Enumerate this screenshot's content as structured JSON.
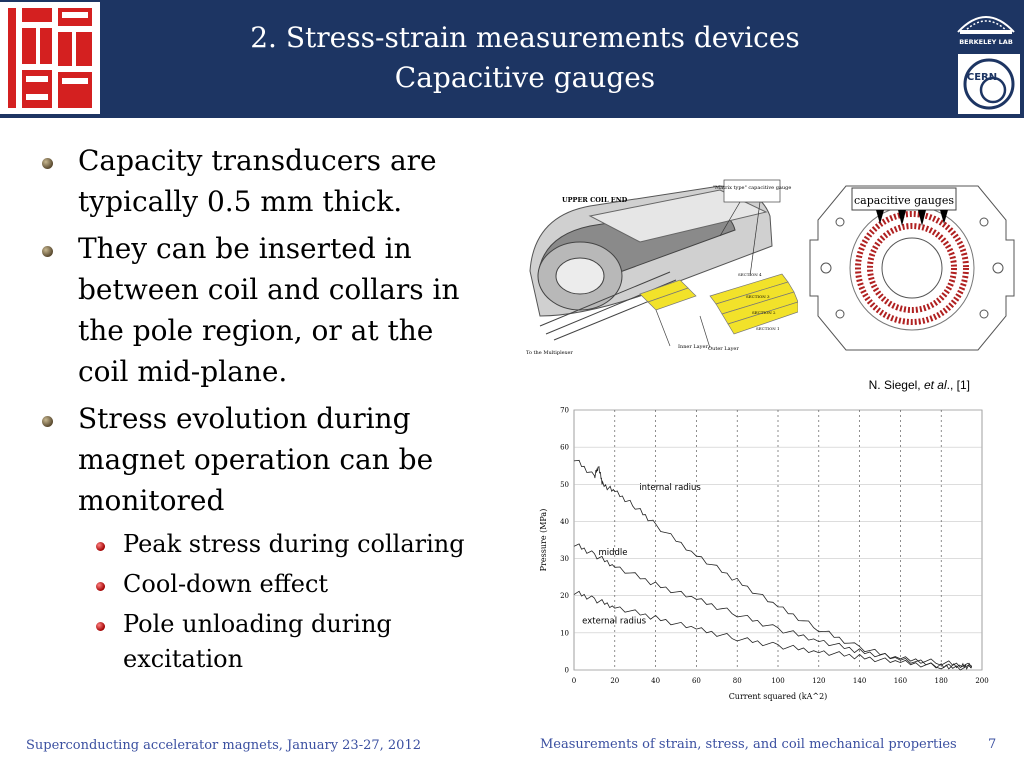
{
  "header": {
    "title_line1": "2. Stress-strain measurements devices",
    "title_line2": "Capacitive gauges",
    "logo_left_text": "USPAS",
    "logo_berkeley_text": "BERKELEY LAB",
    "logo_cern_text": "CERN"
  },
  "bullets": [
    {
      "text": "Capacity transducers are typically 0.5 mm thick."
    },
    {
      "text": "They can be inserted in between coil and collars in the pole region, or at the coil mid-plane."
    },
    {
      "text": "Stress evolution during magnet operation can be monitored"
    }
  ],
  "sub_bullets": [
    {
      "text": "Peak stress during collaring"
    },
    {
      "text": "Cool-down effect"
    },
    {
      "text": "Pole unloading during excitation"
    }
  ],
  "figure1": {
    "label_coil_end": "UPPER COIL END",
    "label_gauge": "\"Matrix type\" capacitive gauge",
    "label_multiplexer": "To the Multiplexer",
    "label_inner": "Inner Layer",
    "label_outer": "Outer Layer",
    "sections": [
      "SECTION 4",
      "SECTION 3",
      "SECTION 2",
      "SECTION 1"
    ]
  },
  "figure2": {
    "label": "capacitive gauges"
  },
  "credit": {
    "author": "N. Siegel, ",
    "etal": "et al",
    "ref": "., [1]"
  },
  "chart_data": {
    "type": "line",
    "xlabel": "Current squared (kA^2)",
    "ylabel": "Pressure (MPa)",
    "xlim": [
      0,
      200
    ],
    "ylim": [
      0,
      70
    ],
    "xticks": [
      0,
      20,
      40,
      60,
      80,
      100,
      120,
      140,
      160,
      180,
      200
    ],
    "yticks": [
      0,
      10,
      20,
      30,
      40,
      50,
      60,
      70
    ],
    "grid": "vertical dashed",
    "series": [
      {
        "name": "internal radius",
        "x": [
          0,
          10,
          12,
          14,
          20,
          30,
          40,
          60,
          80,
          100,
          120,
          140,
          160,
          180,
          190,
          195
        ],
        "y": [
          57,
          52,
          55,
          50,
          48,
          44,
          39,
          31,
          24,
          17,
          11,
          6,
          3,
          1,
          1,
          1
        ]
      },
      {
        "name": "middle",
        "x": [
          0,
          10,
          20,
          40,
          60,
          80,
          100,
          120,
          140,
          160,
          180,
          195
        ],
        "y": [
          34,
          31,
          28,
          23,
          19,
          15,
          11,
          8,
          5,
          3,
          2,
          1
        ]
      },
      {
        "name": "external radius",
        "x": [
          0,
          10,
          20,
          40,
          60,
          80,
          100,
          120,
          140,
          160,
          180,
          195
        ],
        "y": [
          21,
          19,
          17,
          14,
          11,
          8.5,
          6.5,
          5,
          3.5,
          2,
          1,
          0.5
        ]
      }
    ]
  },
  "footer": {
    "left": "Superconducting accelerator magnets, January 23-27, 2012",
    "right": "Measurements of strain, stress, and coil mechanical properties",
    "page": "7"
  },
  "colors": {
    "header_bg": "#1d3563",
    "accent_red": "#d42020",
    "footer_text": "#3a4fa0",
    "gauge_yellow": "#f2e22a"
  }
}
